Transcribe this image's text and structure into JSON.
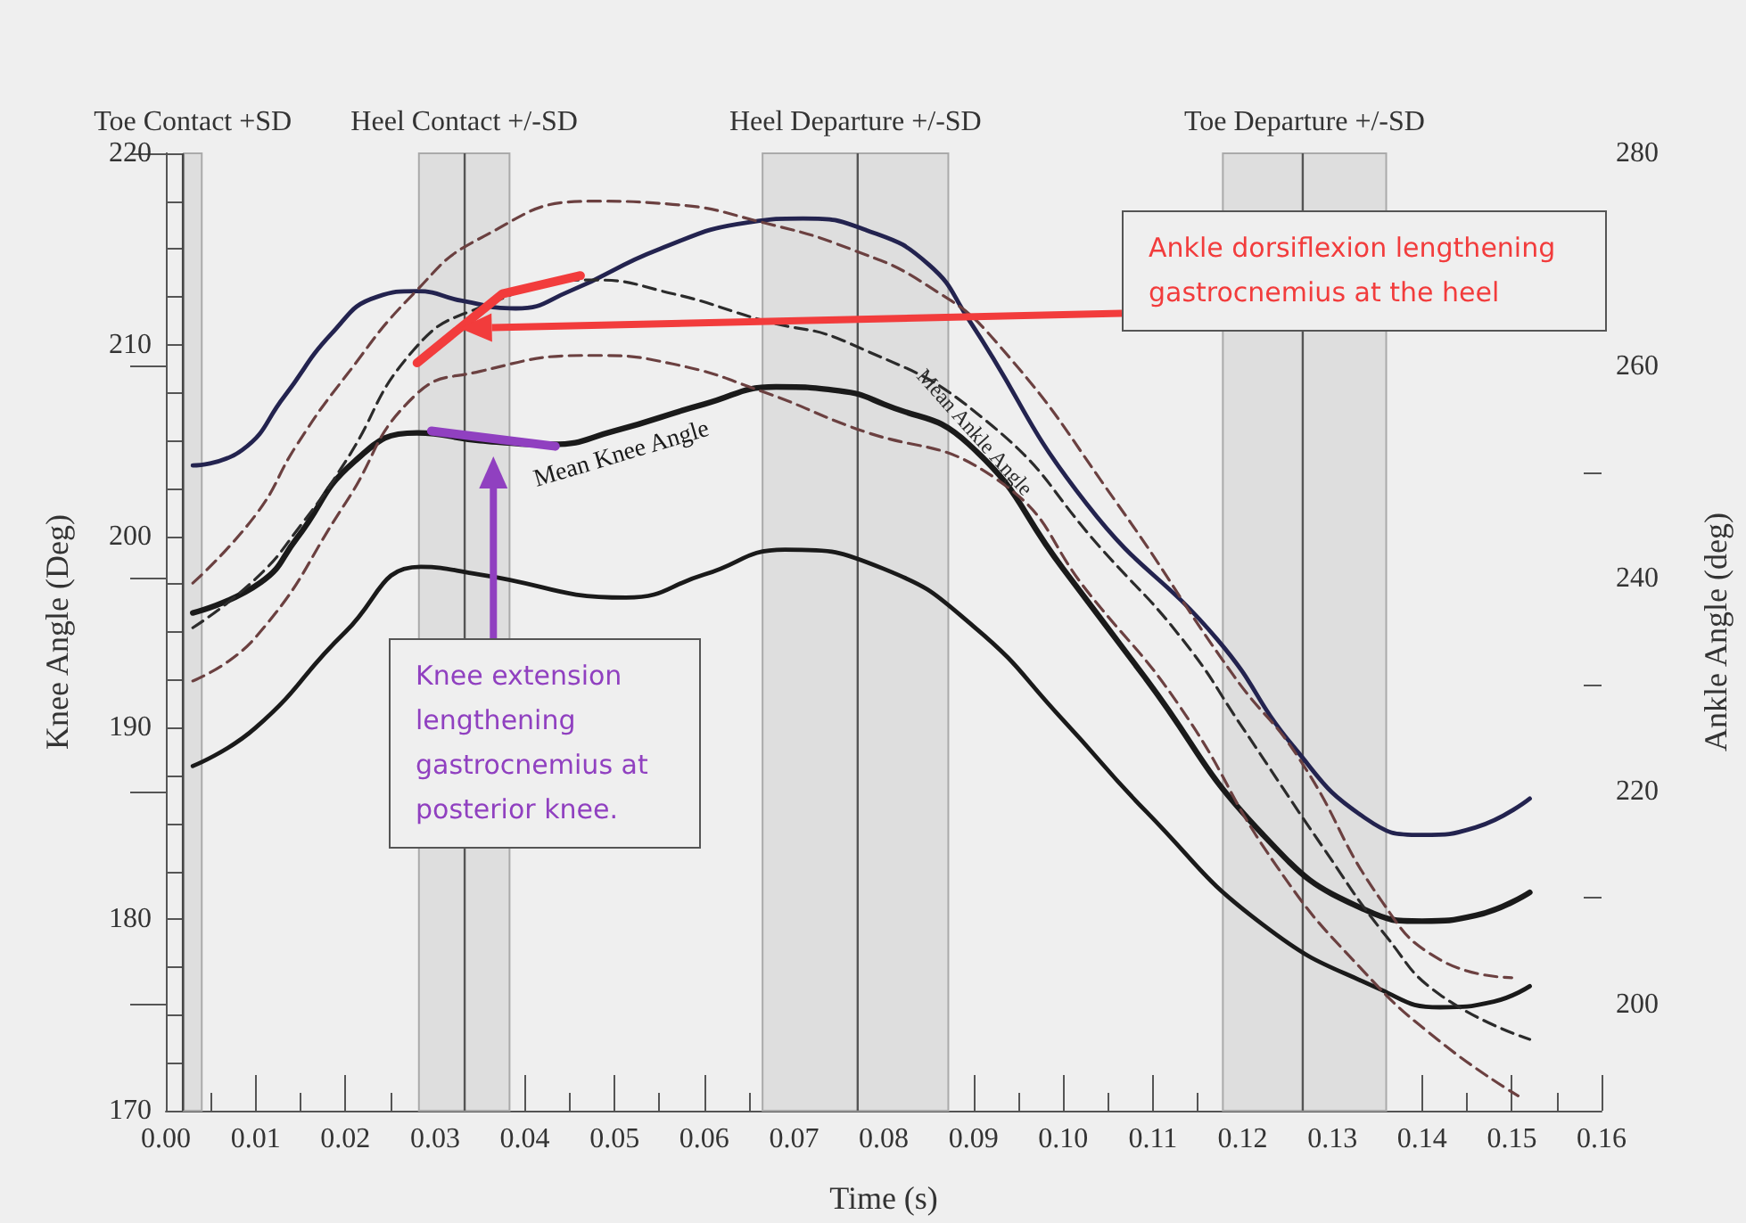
{
  "chart_data": {
    "type": "line",
    "xlabel": "Time (s)",
    "ylabel": "Knee Angle (Deg)",
    "y2label": "Ankle Angle (deg)",
    "xlim": [
      0,
      0.16
    ],
    "xticks": [
      {
        "value": 0,
        "label": "0.00"
      },
      {
        "value": 0.005,
        "label": null
      },
      0.01,
      {
        "value": 0.015,
        "label": null
      },
      0.02,
      {
        "value": 0.025,
        "label": null
      },
      0.03,
      {
        "value": 0.035,
        "label": null
      },
      0.04,
      {
        "value": 0.045,
        "label": null
      },
      0.05,
      {
        "value": 0.055,
        "label": null
      },
      0.06,
      {
        "value": 0.065,
        "label": null
      },
      0.07,
      {
        "value": 0.075,
        "label": null
      },
      0.08,
      {
        "value": 0.085,
        "label": null
      },
      0.09,
      {
        "value": 0.095,
        "label": null
      },
      {
        "value": 0.1,
        "label": "0.10"
      },
      {
        "value": 0.105,
        "label": null
      },
      0.11,
      {
        "value": 0.115,
        "label": null
      },
      0.12,
      {
        "value": 0.125,
        "label": null
      },
      0.13,
      {
        "value": 0.135,
        "label": null
      },
      0.14,
      {
        "value": 0.145,
        "label": null
      },
      0.15,
      {
        "value": 0.155,
        "label": null
      },
      0.16
    ],
    "ylim": [
      170,
      220
    ],
    "yticks": [
      170,
      {
        "value": 172.5,
        "label": null
      },
      {
        "value": 175,
        "label": null
      },
      {
        "value": 177.5,
        "label": null
      },
      180,
      {
        "value": 182.5,
        "label": null
      },
      {
        "value": 185,
        "label": null
      },
      {
        "value": 187.5,
        "label": null
      },
      190,
      {
        "value": 192.5,
        "label": null
      },
      {
        "value": 195,
        "label": null
      },
      {
        "value": 197.5,
        "label": null
      },
      200,
      {
        "value": 202.5,
        "label": null
      },
      {
        "value": 205,
        "label": null
      },
      {
        "value": 207.5,
        "label": null
      },
      210,
      {
        "value": 212.5,
        "label": null
      },
      {
        "value": 215,
        "label": null
      },
      {
        "value": 217.5,
        "label": null
      },
      220
    ],
    "y2lim": [
      190,
      280
    ],
    "y2ticks": [
      200,
      {
        "value": 210,
        "label": null
      },
      220,
      {
        "value": 230,
        "label": null
      },
      240,
      {
        "value": 250,
        "label": null
      },
      260,
      {
        "value": 270,
        "label": null
      },
      280
    ],
    "grid": false,
    "legend": false,
    "marker": "none",
    "series": [
      {
        "color": "#23234f",
        "line_style": "solid",
        "x": [
          0.003,
          0.0085,
          0.0132,
          0.0185,
          0.0235,
          0.028,
          0.033,
          0.039,
          0.045,
          0.055,
          0.065,
          0.071,
          0.078,
          0.085,
          0.0895,
          0.1026,
          0.1172,
          0.1257,
          0.1336,
          0.14,
          0.146,
          0.152
        ],
        "values": [
          203.7,
          204.5,
          207.3,
          210.6,
          212.5,
          212.8,
          212.3,
          211.9,
          212.8,
          215.0,
          216.4,
          216.6,
          216.0,
          214.2,
          211.3,
          201.7,
          194.6,
          189.0,
          185.3,
          184.4,
          184.8,
          186.3
        ]
      },
      {
        "name": "Mean Knee Angle",
        "color": "#1a1a1a",
        "line_style": "solid",
        "x": [
          0.003,
          0.0106,
          0.0146,
          0.021,
          0.028,
          0.035,
          0.043,
          0.05,
          0.06,
          0.068,
          0.075,
          0.08,
          0.0895,
          0.1,
          0.109,
          0.1223,
          0.1336,
          0.14,
          0.146,
          0.152
        ],
        "values": [
          196.0,
          197.6,
          199.9,
          203.9,
          205.4,
          205.0,
          204.8,
          205.5,
          206.9,
          207.8,
          207.6,
          206.9,
          204.8,
          198.3,
          192.7,
          184.4,
          180.5,
          179.9,
          180.2,
          181.4
        ]
      },
      {
        "color": "#1a1a1a",
        "line_style": "solid",
        "x": [
          0.003,
          0.01,
          0.02,
          0.0284,
          0.035,
          0.0513,
          0.06,
          0.069,
          0.08,
          0.09,
          0.1,
          0.1093,
          0.1223,
          0.1355,
          0.142,
          0.148,
          0.152
        ],
        "values": [
          188.0,
          190.0,
          195.0,
          198.4,
          198.0,
          196.8,
          198.0,
          199.3,
          198.3,
          195.3,
          190.4,
          185.6,
          179.7,
          176.3,
          175.4,
          175.7,
          176.5
        ]
      },
      {
        "color": "#6b4040",
        "line_style": "dashed",
        "axis": "y2",
        "x": [
          0.003,
          0.01,
          0.0146,
          0.02,
          0.0276,
          0.035,
          0.0474,
          0.0565,
          0.0665,
          0.0763,
          0.085,
          0.0927,
          0.106,
          0.119,
          0.1263,
          0.1355,
          0.142,
          0.15
        ],
        "values": [
          239.6,
          246,
          252.6,
          259,
          266.8,
          272,
          275.5,
          275.2,
          273.5,
          271.0,
          267.5,
          262.1,
          247.1,
          230.9,
          223.1,
          209.7,
          204.2,
          202.5
        ]
      },
      {
        "name": "Mean Ankle Angle",
        "color": "#2b2b2b",
        "line_style": "dashed",
        "axis": "y2",
        "x": [
          0.003,
          0.01,
          0.015,
          0.02,
          0.0276,
          0.035,
          0.0474,
          0.0565,
          0.0665,
          0.0763,
          0.0915,
          0.1045,
          0.1133,
          0.12,
          0.129,
          0.136,
          0.142,
          0.152
        ],
        "values": [
          235.4,
          240,
          245,
          251,
          261.5,
          265.5,
          268.1,
          266.8,
          264.3,
          262.1,
          254.8,
          242.6,
          234.3,
          226,
          214.7,
          206.4,
          200.9,
          196.7
        ]
      },
      {
        "color": "#6b4040",
        "line_style": "dashed",
        "axis": "y2",
        "x": [
          0.003,
          0.01,
          0.02,
          0.0276,
          0.035,
          0.0474,
          0.0565,
          0.0665,
          0.0763,
          0.0927,
          0.103,
          0.113,
          0.1237,
          0.1336,
          0.142,
          0.1507
        ],
        "values": [
          230.4,
          234.5,
          247.1,
          257.1,
          259.5,
          261.0,
          260.2,
          257.6,
          254.3,
          249.3,
          238.5,
          228,
          213.1,
          203.0,
          196.5,
          191.4
        ]
      },
      {
        "color": "#f23c3c",
        "line_style": "solid",
        "axis": "y2",
        "x": [
          0.028,
          0.0375,
          0.0462
        ],
        "values": [
          260.3,
          266.8,
          268.5
        ]
      },
      {
        "color": "#9040c0",
        "line_style": "solid",
        "x": [
          0.0296,
          0.0434
        ],
        "values": [
          205.5,
          204.7
        ]
      }
    ],
    "bands": [
      {
        "axis": "x",
        "from": 0.002,
        "to": 0.004,
        "label": "Toe Contact +SD",
        "color": "#dedede"
      },
      {
        "axis": "x",
        "from": 0.0282,
        "to": 0.0383,
        "label": "Heel Contact +/-SD",
        "color": "#dedede"
      },
      {
        "axis": "x",
        "from": 0.0665,
        "to": 0.0872,
        "label": "Heel Departure +/-SD",
        "color": "#dedede"
      },
      {
        "axis": "x",
        "from": 0.1178,
        "to": 0.136,
        "label": "Toe Departure +/-SD",
        "color": "#dedede"
      }
    ],
    "ref_lines": [
      {
        "axis": "x",
        "value": 0.0019,
        "color": "#444444"
      },
      {
        "axis": "x",
        "value": 0.0333,
        "color": "#555555"
      },
      {
        "axis": "x",
        "value": 0.0771,
        "color": "#555555"
      },
      {
        "axis": "x",
        "value": 0.1267,
        "color": "#555555"
      }
    ],
    "annotations": [
      "Ankle dorsiflexion lengthening gastrocnemius at the heel",
      "Knee extension lengthening gastrocnemius at posterior knee."
    ]
  }
}
